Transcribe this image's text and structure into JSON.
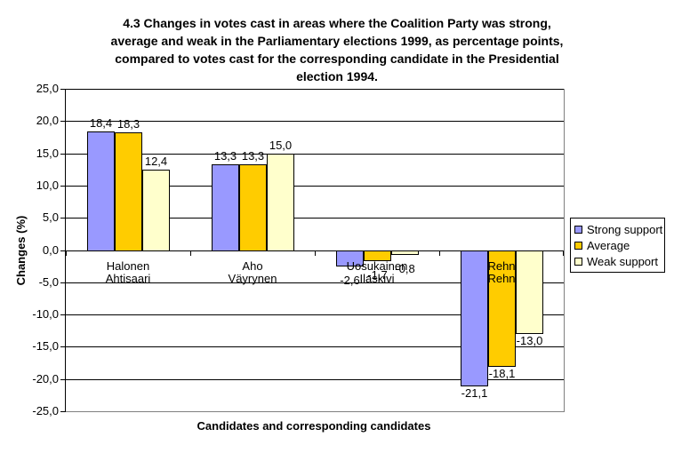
{
  "title": {
    "text": "4.3 Changes in votes cast in areas where the Coalition Party was strong, average and weak in the Parliamentary elections 1999, as percentage points, compared to votes cast for the corresponding candidate in the Presidential election 1994.",
    "lines": [
      "4.3 Changes in votes cast in areas where the Coalition Party was strong,",
      "average and weak in the Parliamentary elections 1999, as percentage points,",
      "compared to votes cast for the corresponding candidate in the Presidential",
      "election 1994."
    ]
  },
  "chart_data": {
    "type": "bar",
    "title": "4.3 Changes in votes cast in areas where the Coalition Party was strong, average and weak in the Parliamentary elections 1999, as percentage points, compared to votes cast for the corresponding candidate in the Presidential election 1994.",
    "xlabel": "Candidates and corresponding candidates",
    "ylabel": "Changes (%)",
    "ylim": [
      -25,
      25
    ],
    "ytick_step": 5,
    "ytick_labels": [
      "25,0",
      "20,0",
      "15,0",
      "10,0",
      "5,0",
      "0,0",
      "-5,0",
      "-10,0",
      "-15,0",
      "-20,0",
      "-25,0"
    ],
    "grid": true,
    "legend_position": "right",
    "decimal_separator": ",",
    "categories": [
      {
        "line1": "Halonen",
        "line2": "Ahtisaari"
      },
      {
        "line1": "Aho",
        "line2": "Väyrynen"
      },
      {
        "line1": "Uosukainen",
        "line2": "Ilaskivi"
      },
      {
        "line1": "Rehn",
        "line2": "Rehn"
      }
    ],
    "series": [
      {
        "name": "Strong support",
        "color": "#9999FF",
        "values": [
          18.4,
          13.3,
          -2.6,
          -21.1
        ],
        "data_labels": [
          "18,4",
          "13,3",
          "-2,6",
          "-21,1"
        ]
      },
      {
        "name": "Average",
        "color": "#FFCC00",
        "values": [
          18.3,
          13.3,
          -1.7,
          -18.1
        ],
        "data_labels": [
          "18,3",
          "13,3",
          "-1,7",
          "-18,1"
        ]
      },
      {
        "name": "Weak support",
        "color": "#FFFFCC",
        "values": [
          12.4,
          15.0,
          -0.8,
          -13.0
        ],
        "data_labels": [
          "12,4",
          "15,0",
          "-0,8",
          "-13,0"
        ]
      }
    ],
    "colors": {
      "axis": "#000000",
      "gridline": "#000000",
      "plot_border": "#808080",
      "background": "#FFFFFF"
    }
  }
}
